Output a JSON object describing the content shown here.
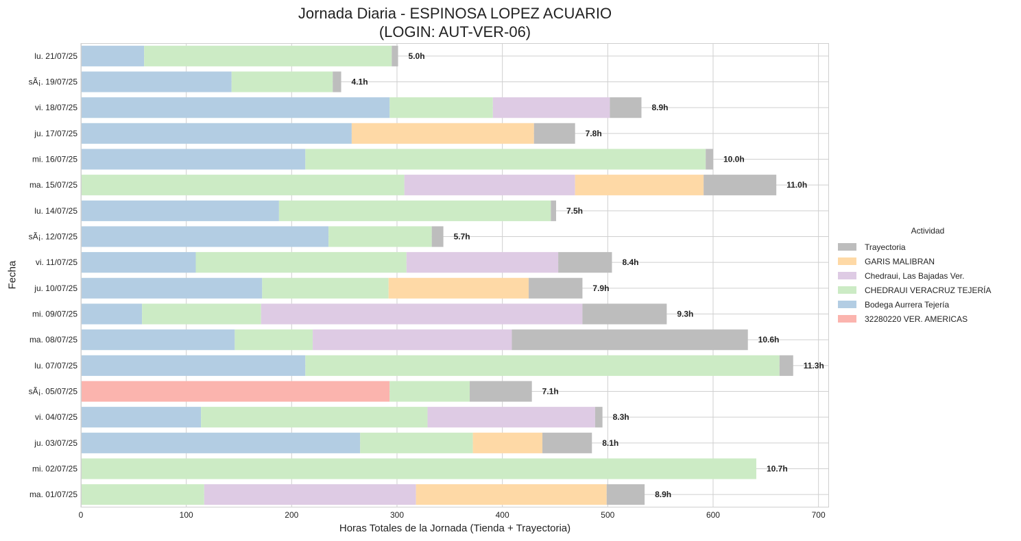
{
  "chart_data": {
    "type": "bar",
    "orientation": "horizontal",
    "stacked": true,
    "title_line1": "Jornada Diaria - ESPINOSA LOPEZ ACUARIO",
    "title_line2": "(LOGIN: AUT-VER-06)",
    "xlabel": "Horas Totales de la Jornada (Tienda + Trayectoria)",
    "ylabel": "Fecha",
    "xlim": [
      0,
      710
    ],
    "xticks": [
      0,
      100,
      200,
      300,
      400,
      500,
      600,
      700
    ],
    "grid": true,
    "legend_title": "Actividad",
    "legend_position": "right",
    "categories": [
      "lu. 21/07/25",
      "sÃ¡. 19/07/25",
      "vi. 18/07/25",
      "ju. 17/07/25",
      "mi. 16/07/25",
      "ma. 15/07/25",
      "lu. 14/07/25",
      "sÃ¡. 12/07/25",
      "vi. 11/07/25",
      "ju. 10/07/25",
      "mi. 09/07/25",
      "ma. 08/07/25",
      "lu. 07/07/25",
      "sÃ¡. 05/07/25",
      "vi. 04/07/25",
      "ju. 03/07/25",
      "mi. 02/07/25",
      "ma. 01/07/25"
    ],
    "stack_order": [
      "32280220 VER. AMERICAS",
      "Bodega Aurrera Tejería",
      "CHEDRAUI VERACRUZ TEJERÍA",
      "Chedraui, Las Bajadas Ver.",
      "GARIS MALIBRAN",
      "Trayectoria"
    ],
    "legend_order": [
      "Trayectoria",
      "GARIS MALIBRAN",
      "Chedraui, Las Bajadas Ver.",
      "CHEDRAUI VERACRUZ TEJERÍA",
      "Bodega Aurrera Tejería",
      "32280220 VER. AMERICAS"
    ],
    "series": [
      {
        "name": "32280220 VER. AMERICAS",
        "color": "#fbb4ae",
        "values": [
          0,
          0,
          0,
          0,
          0,
          0,
          0,
          0,
          0,
          0,
          0,
          0,
          0,
          293,
          0,
          0,
          0,
          0
        ]
      },
      {
        "name": "Bodega Aurrera Tejería",
        "color": "#b3cde3",
        "values": [
          60,
          143,
          293,
          257,
          213,
          0,
          188,
          235,
          109,
          172,
          58,
          146,
          213,
          0,
          114,
          265,
          0,
          0
        ]
      },
      {
        "name": "CHEDRAUI VERACRUZ TEJERÍA",
        "color": "#ccebc5",
        "values": [
          235,
          96,
          98,
          0,
          380,
          307,
          258,
          98,
          200,
          120,
          113,
          74,
          450,
          76,
          215,
          107,
          641,
          117
        ]
      },
      {
        "name": "Chedraui, Las Bajadas Ver.",
        "color": "#decbe4",
        "values": [
          0,
          0,
          111,
          0,
          0,
          162,
          0,
          0,
          144,
          0,
          305,
          189,
          0,
          0,
          159,
          0,
          0,
          201
        ]
      },
      {
        "name": "GARIS MALIBRAN",
        "color": "#fed9a6",
        "values": [
          0,
          0,
          0,
          173,
          0,
          122,
          0,
          0,
          0,
          133,
          0,
          0,
          0,
          0,
          0,
          66,
          0,
          181
        ]
      },
      {
        "name": "Trayectoria",
        "color": "#bdbdbd",
        "values": [
          6,
          8,
          30,
          39,
          7,
          69,
          5,
          11,
          51,
          51,
          80,
          224,
          13,
          59,
          7,
          47,
          0,
          36
        ]
      }
    ],
    "data_labels": [
      "5.0h",
      "4.1h",
      "8.9h",
      "7.8h",
      "10.0h",
      "11.0h",
      "7.5h",
      "5.7h",
      "8.4h",
      "7.9h",
      "9.3h",
      "10.6h",
      "11.3h",
      "7.1h",
      "8.3h",
      "8.1h",
      "10.7h",
      "8.9h"
    ]
  }
}
